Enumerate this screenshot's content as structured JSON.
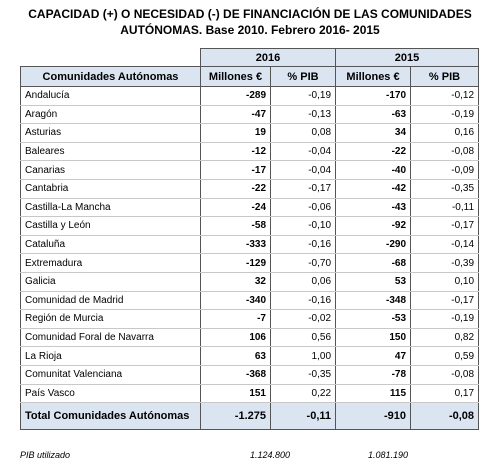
{
  "title": [
    "CAPACIDAD (+) O NECESIDAD (-) DE FINANCIACIÓN DE LAS COMUNIDADES",
    "AUTÓNOMAS. Base 2010. Febrero 2016- 2015"
  ],
  "table": {
    "years": [
      "2016",
      "2015"
    ],
    "columns": [
      "Comunidades Autónomas",
      "Millones €",
      "% PIB",
      "Millones €",
      "% PIB"
    ],
    "rows": [
      [
        "Andalucía",
        "-289",
        "-0,19",
        "-170",
        "-0,12"
      ],
      [
        "Aragón",
        "-47",
        "-0,13",
        "-63",
        "-0,19"
      ],
      [
        "Asturias",
        "19",
        "0,08",
        "34",
        "0,16"
      ],
      [
        "Baleares",
        "-12",
        "-0,04",
        "-22",
        "-0,08"
      ],
      [
        "Canarias",
        "-17",
        "-0,04",
        "-40",
        "-0,09"
      ],
      [
        "Cantabria",
        "-22",
        "-0,17",
        "-42",
        "-0,35"
      ],
      [
        "Castilla-La Mancha",
        "-24",
        "-0,06",
        "-43",
        "-0,11"
      ],
      [
        "Castilla y León",
        "-58",
        "-0,10",
        "-92",
        "-0,17"
      ],
      [
        "Cataluña",
        "-333",
        "-0,16",
        "-290",
        "-0,14"
      ],
      [
        "Extremadura",
        "-129",
        "-0,70",
        "-68",
        "-0,39"
      ],
      [
        "Galicia",
        "32",
        "0,06",
        "53",
        "0,10"
      ],
      [
        "Comunidad de Madrid",
        "-340",
        "-0,16",
        "-348",
        "-0,17"
      ],
      [
        "Región de Murcia",
        "-7",
        "-0,02",
        "-53",
        "-0,19"
      ],
      [
        "Comunidad Foral de Navarra",
        "106",
        "0,56",
        "150",
        "0,82"
      ],
      [
        "La Rioja",
        "63",
        "1,00",
        "47",
        "0,59"
      ],
      [
        "Comunitat Valenciana",
        "-368",
        "-0,35",
        "-78",
        "-0,08"
      ],
      [
        "País Vasco",
        "151",
        "0,22",
        "115",
        "0,17"
      ]
    ],
    "total": [
      "Total Comunidades Autónomas",
      "-1.275",
      "-0,11",
      "-910",
      "-0,08"
    ]
  },
  "footer": {
    "label": "PIB utilizado",
    "values": [
      "1.124.800",
      "1.081.190"
    ]
  }
}
